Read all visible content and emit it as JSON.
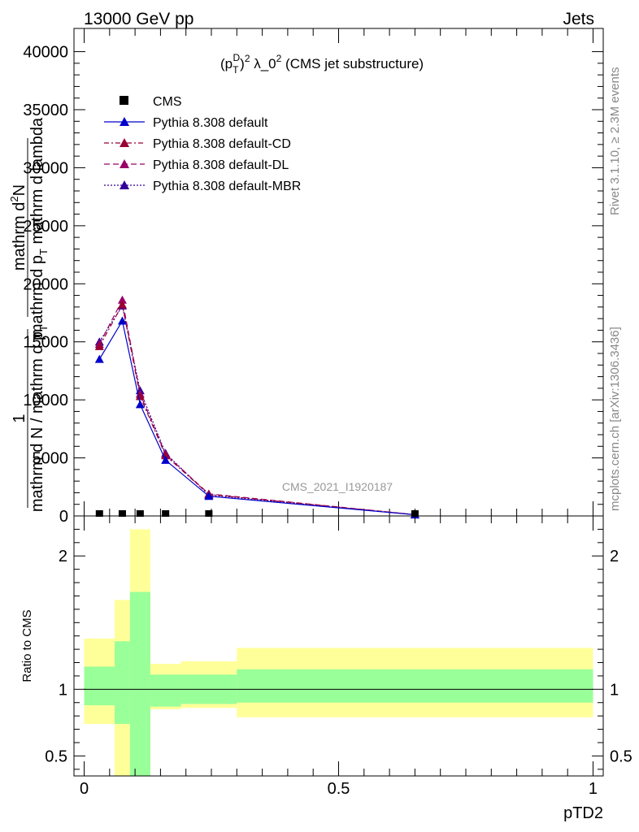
{
  "header": {
    "left": "13000 GeV pp",
    "right": "Jets"
  },
  "plot_title": {
    "pre": "(p",
    "sub": "T",
    "sup1": "D",
    "mid": ")",
    "sup2": "2",
    "rest": " λ_0",
    "sup3": "2",
    "post": " (CMS jet substructure)"
  },
  "watermark": "CMS_2021_I1920187",
  "side_texts": {
    "rivet": "Rivet 3.1.10, ≥ 2.3M events",
    "mcplots": "mcplots.cern.ch [arXiv:1306.3436]"
  },
  "ylabel_lines": {
    "numerator": "mathrm d",
    "numerator_sup": "2",
    "numerator_n": "N",
    "den1": "mathrm d p",
    "den1_sub": "T",
    "den1_rest": " mathrm d lambda",
    "frac_one": "1",
    "den2": "mathrm d N / mathrm d p",
    "den2_sub": "T"
  },
  "ratio_ylabel": "Ratio to CMS",
  "xlabel": "pTD2",
  "legend": [
    {
      "name": "CMS",
      "color": "#000000",
      "marker": "square",
      "dash": ""
    },
    {
      "name": "Pythia 8.308 default",
      "color": "#0000cc",
      "marker": "triangle",
      "dash": ""
    },
    {
      "name": "Pythia 8.308 default-CD",
      "color": "#990033",
      "marker": "triangle",
      "dash": "6,3,2,3"
    },
    {
      "name": "Pythia 8.308 default-DL",
      "color": "#990066",
      "marker": "triangle",
      "dash": "7,4"
    },
    {
      "name": "Pythia 8.308 default-MBR",
      "color": "#330099",
      "marker": "triangle",
      "dash": "2,2"
    }
  ],
  "chart_data": {
    "type": "line",
    "xlim": [
      -0.02,
      1.02
    ],
    "ylim": [
      0,
      42000
    ],
    "xticks": [
      0,
      0.5,
      1
    ],
    "xtick_labels": [
      "0",
      "0.5",
      "1"
    ],
    "yticks": [
      0,
      5000,
      10000,
      15000,
      20000,
      25000,
      30000,
      35000,
      40000
    ],
    "ytick_labels": [
      "0",
      "5000",
      "10000",
      "15000",
      "20000",
      "25000",
      "30000",
      "35000",
      "40000"
    ],
    "x": [
      0.03,
      0.075,
      0.11,
      0.16,
      0.245,
      0.65
    ],
    "series": [
      {
        "name": "CMS",
        "values": [
          0,
          0,
          0,
          0,
          0,
          0
        ]
      },
      {
        "name": "Pythia 8.308 default",
        "values": [
          13500,
          16800,
          9600,
          4800,
          1700,
          100
        ]
      },
      {
        "name": "Pythia 8.308 default-CD",
        "values": [
          14600,
          18200,
          10300,
          5200,
          1850,
          110
        ]
      },
      {
        "name": "Pythia 8.308 default-DL",
        "values": [
          14800,
          18600,
          10500,
          5300,
          1900,
          110
        ]
      },
      {
        "name": "Pythia 8.308 default-MBR",
        "values": [
          15000,
          18100,
          10800,
          5400,
          1800,
          110
        ]
      }
    ],
    "ratio": {
      "ylim": [
        0.35,
        2.3
      ],
      "yticks": [
        0.5,
        1,
        2
      ],
      "ytick_labels": [
        "0.5",
        "1",
        "2"
      ],
      "bins": [
        {
          "x0": 0.0,
          "x1": 0.06,
          "g_lo": 0.88,
          "g_hi": 1.17,
          "y_lo": 0.74,
          "y_hi": 1.38
        },
        {
          "x0": 0.06,
          "x1": 0.09,
          "g_lo": 0.74,
          "g_hi": 1.36,
          "y_lo": 0.2,
          "y_hi": 1.67
        },
        {
          "x0": 0.09,
          "x1": 0.13,
          "g_lo": 0.2,
          "g_hi": 1.73,
          "y_lo": 0.2,
          "y_hi": 2.2
        },
        {
          "x0": 0.13,
          "x1": 0.19,
          "g_lo": 0.87,
          "g_hi": 1.11,
          "y_lo": 0.85,
          "y_hi": 1.19
        },
        {
          "x0": 0.19,
          "x1": 0.3,
          "g_lo": 0.89,
          "g_hi": 1.11,
          "y_lo": 0.86,
          "y_hi": 1.21
        },
        {
          "x0": 0.3,
          "x1": 1.0,
          "g_lo": 0.9,
          "g_hi": 1.15,
          "y_lo": 0.79,
          "y_hi": 1.31
        }
      ]
    }
  }
}
